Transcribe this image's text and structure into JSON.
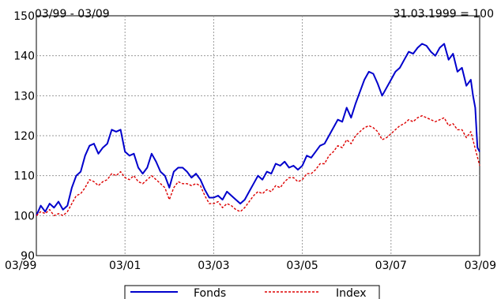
{
  "chart_data": {
    "type": "line",
    "title": "",
    "range_label": "03/99 - 03/09",
    "base_label": "31.03.1999 = 100",
    "xlabel": "",
    "ylabel": "",
    "ylim": [
      90,
      150
    ],
    "yticks": [
      90,
      100,
      110,
      120,
      130,
      140,
      150
    ],
    "xlim": [
      1999.25,
      2009.25
    ],
    "xticks": [
      {
        "x": 1999.25,
        "label": "03/99"
      },
      {
        "x": 2001.25,
        "label": "03/01"
      },
      {
        "x": 2003.25,
        "label": "03/03"
      },
      {
        "x": 2005.25,
        "label": "03/05"
      },
      {
        "x": 2007.25,
        "label": "03/07"
      },
      {
        "x": 2009.25,
        "label": "03/09"
      }
    ],
    "grid": true,
    "legend_position": "bottom",
    "series": [
      {
        "name": "Fonds",
        "color": "#0000cc",
        "style": "solid",
        "points": [
          [
            1999.25,
            100
          ],
          [
            1999.35,
            102.5
          ],
          [
            1999.45,
            101
          ],
          [
            1999.55,
            103
          ],
          [
            1999.65,
            102
          ],
          [
            1999.75,
            103.5
          ],
          [
            1999.85,
            101.5
          ],
          [
            1999.95,
            102.5
          ],
          [
            2000.05,
            107
          ],
          [
            2000.15,
            110
          ],
          [
            2000.25,
            111
          ],
          [
            2000.35,
            115
          ],
          [
            2000.45,
            117.5
          ],
          [
            2000.55,
            118
          ],
          [
            2000.65,
            115.5
          ],
          [
            2000.75,
            117
          ],
          [
            2000.85,
            118
          ],
          [
            2000.95,
            121.5
          ],
          [
            2001.05,
            121
          ],
          [
            2001.15,
            121.5
          ],
          [
            2001.25,
            116
          ],
          [
            2001.35,
            115
          ],
          [
            2001.45,
            115.5
          ],
          [
            2001.55,
            112
          ],
          [
            2001.65,
            110.5
          ],
          [
            2001.75,
            112
          ],
          [
            2001.85,
            115.5
          ],
          [
            2001.95,
            113.5
          ],
          [
            2002.05,
            111
          ],
          [
            2002.15,
            110
          ],
          [
            2002.25,
            107
          ],
          [
            2002.35,
            111
          ],
          [
            2002.45,
            112
          ],
          [
            2002.55,
            112
          ],
          [
            2002.65,
            111
          ],
          [
            2002.75,
            109.5
          ],
          [
            2002.85,
            110.5
          ],
          [
            2002.95,
            109
          ],
          [
            2003.05,
            106.5
          ],
          [
            2003.15,
            104.5
          ],
          [
            2003.25,
            104.5
          ],
          [
            2003.35,
            105
          ],
          [
            2003.45,
            104
          ],
          [
            2003.55,
            106
          ],
          [
            2003.65,
            105
          ],
          [
            2003.75,
            104
          ],
          [
            2003.85,
            103
          ],
          [
            2003.95,
            104
          ],
          [
            2004.05,
            106
          ],
          [
            2004.15,
            108
          ],
          [
            2004.25,
            110
          ],
          [
            2004.35,
            109
          ],
          [
            2004.45,
            111
          ],
          [
            2004.55,
            110.5
          ],
          [
            2004.65,
            113
          ],
          [
            2004.75,
            112.5
          ],
          [
            2004.85,
            113.5
          ],
          [
            2004.95,
            112
          ],
          [
            2005.05,
            112.5
          ],
          [
            2005.15,
            111.5
          ],
          [
            2005.25,
            112.5
          ],
          [
            2005.35,
            115
          ],
          [
            2005.45,
            114.5
          ],
          [
            2005.55,
            116
          ],
          [
            2005.65,
            117.5
          ],
          [
            2005.75,
            118
          ],
          [
            2005.85,
            120
          ],
          [
            2005.95,
            122
          ],
          [
            2006.05,
            124
          ],
          [
            2006.15,
            123.5
          ],
          [
            2006.25,
            127
          ],
          [
            2006.35,
            124.5
          ],
          [
            2006.45,
            128
          ],
          [
            2006.55,
            131
          ],
          [
            2006.65,
            134
          ],
          [
            2006.75,
            136
          ],
          [
            2006.85,
            135.5
          ],
          [
            2006.95,
            133
          ],
          [
            2007.05,
            130
          ],
          [
            2007.15,
            132
          ],
          [
            2007.25,
            134
          ],
          [
            2007.35,
            136
          ],
          [
            2007.45,
            137
          ],
          [
            2007.55,
            139
          ],
          [
            2007.65,
            141
          ],
          [
            2007.75,
            140.5
          ],
          [
            2007.85,
            142
          ],
          [
            2007.95,
            143
          ],
          [
            2008.05,
            142.5
          ],
          [
            2008.15,
            141
          ],
          [
            2008.25,
            140
          ],
          [
            2008.35,
            142
          ],
          [
            2008.45,
            143
          ],
          [
            2008.55,
            139
          ],
          [
            2008.65,
            140.5
          ],
          [
            2008.75,
            136
          ],
          [
            2008.85,
            137
          ],
          [
            2008.95,
            132.5
          ],
          [
            2009.05,
            134
          ],
          [
            2008.65,
            140.5
          ]
        ]
      },
      {
        "name": "Index",
        "color": "#dd0000",
        "style": "dashed",
        "points": [
          [
            1999.25,
            100
          ],
          [
            1999.35,
            101
          ],
          [
            1999.45,
            100.5
          ],
          [
            1999.55,
            101.5
          ],
          [
            1999.65,
            100
          ],
          [
            1999.75,
            100.5
          ],
          [
            1999.85,
            100
          ],
          [
            1999.95,
            101
          ],
          [
            2000.05,
            103
          ],
          [
            2000.15,
            105
          ],
          [
            2000.25,
            105.5
          ],
          [
            2000.35,
            107
          ],
          [
            2000.45,
            109
          ],
          [
            2000.55,
            108.5
          ],
          [
            2000.65,
            107.5
          ],
          [
            2000.75,
            108.5
          ],
          [
            2000.85,
            109
          ],
          [
            2000.95,
            110.5
          ],
          [
            2001.05,
            110
          ],
          [
            2001.15,
            111
          ],
          [
            2001.25,
            109.5
          ],
          [
            2001.35,
            109
          ],
          [
            2001.45,
            110
          ],
          [
            2001.55,
            108.5
          ],
          [
            2001.65,
            108
          ],
          [
            2001.75,
            109
          ],
          [
            2001.85,
            110
          ],
          [
            2001.95,
            109
          ],
          [
            2002.05,
            108
          ],
          [
            2002.15,
            107
          ],
          [
            2002.25,
            104
          ],
          [
            2002.35,
            107
          ],
          [
            2002.45,
            108.5
          ],
          [
            2002.55,
            108
          ],
          [
            2002.65,
            108
          ],
          [
            2002.75,
            107.5
          ],
          [
            2002.85,
            108
          ],
          [
            2002.95,
            107.5
          ],
          [
            2003.05,
            105
          ],
          [
            2003.15,
            103
          ],
          [
            2003.25,
            103
          ],
          [
            2003.35,
            103.5
          ],
          [
            2003.45,
            102
          ],
          [
            2003.55,
            103
          ],
          [
            2003.65,
            102.5
          ],
          [
            2003.75,
            101.5
          ],
          [
            2003.85,
            101
          ],
          [
            2003.95,
            102
          ],
          [
            2004.05,
            103.5
          ],
          [
            2004.15,
            105
          ],
          [
            2004.25,
            106
          ],
          [
            2004.35,
            105.5
          ],
          [
            2004.45,
            106.5
          ],
          [
            2004.55,
            106
          ],
          [
            2004.65,
            107.5
          ],
          [
            2004.75,
            107
          ],
          [
            2004.85,
            108.5
          ],
          [
            2004.95,
            109.5
          ],
          [
            2005.05,
            109.5
          ],
          [
            2005.15,
            108.5
          ],
          [
            2005.25,
            109
          ],
          [
            2005.35,
            110.5
          ],
          [
            2005.45,
            110.5
          ],
          [
            2005.55,
            111.5
          ],
          [
            2005.65,
            113
          ],
          [
            2005.75,
            113
          ],
          [
            2005.85,
            115
          ],
          [
            2005.95,
            116
          ],
          [
            2006.05,
            117.5
          ],
          [
            2006.15,
            117
          ],
          [
            2006.25,
            119
          ],
          [
            2006.35,
            118
          ],
          [
            2006.45,
            120
          ],
          [
            2006.55,
            121
          ],
          [
            2006.65,
            122
          ],
          [
            2006.75,
            122.5
          ],
          [
            2006.85,
            122
          ],
          [
            2006.95,
            121
          ],
          [
            2007.05,
            119
          ],
          [
            2007.15,
            119.5
          ],
          [
            2007.25,
            120.5
          ],
          [
            2007.35,
            121.5
          ],
          [
            2007.45,
            122.5
          ],
          [
            2007.55,
            123
          ],
          [
            2007.65,
            124
          ],
          [
            2007.75,
            123.5
          ],
          [
            2007.85,
            124.5
          ],
          [
            2007.95,
            125
          ],
          [
            2008.05,
            124.5
          ],
          [
            2008.15,
            124
          ],
          [
            2008.25,
            123.5
          ],
          [
            2008.35,
            124
          ],
          [
            2008.45,
            124.5
          ],
          [
            2008.55,
            122.5
          ],
          [
            2008.65,
            123
          ],
          [
            2008.75,
            121.5
          ],
          [
            2008.85,
            121.5
          ],
          [
            2008.95,
            119.5
          ],
          [
            2009.05,
            121
          ],
          [
            2009.25,
            112.5
          ]
        ]
      }
    ]
  }
}
